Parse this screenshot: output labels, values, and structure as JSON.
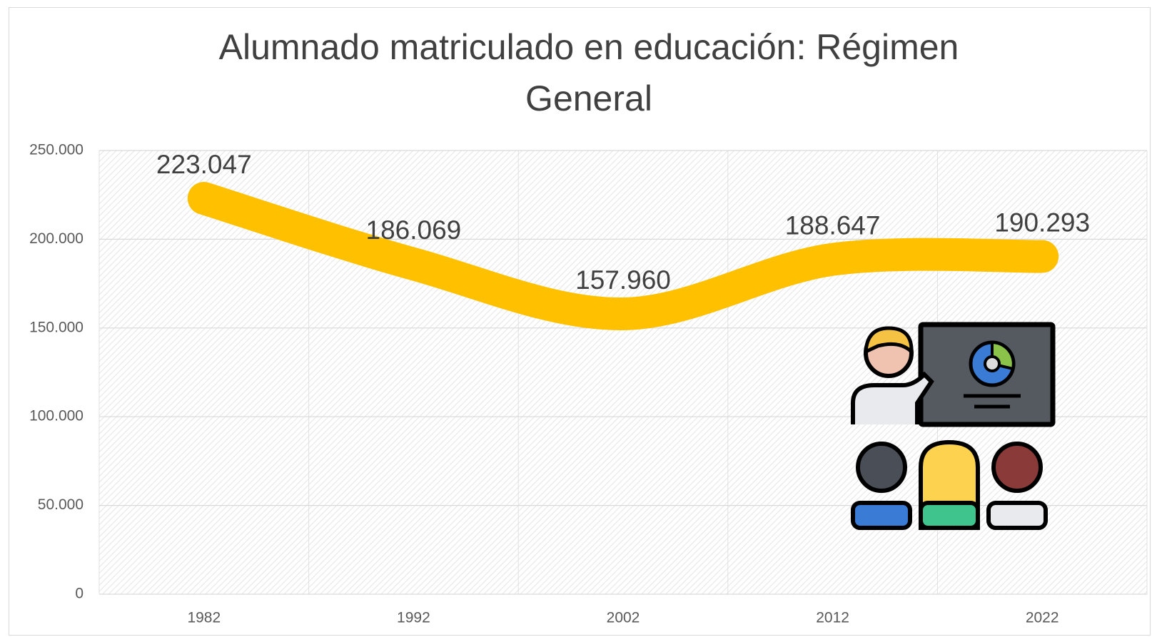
{
  "chart_data": {
    "type": "line",
    "title": "Alumnado matriculado en educación: Régimen General",
    "categories": [
      "1982",
      "1992",
      "2002",
      "2012",
      "2022"
    ],
    "values": [
      223047,
      186069,
      157960,
      188647,
      190293
    ],
    "value_labels": [
      "223.047",
      "186.069",
      "157.960",
      "188.647",
      "190.293"
    ],
    "color": "#ffc000",
    "smooth": true,
    "ylim": [
      0,
      250000
    ],
    "yticks": [
      0,
      {
        "value": 50000,
        "label": "50.000"
      },
      {
        "value": 100000,
        "label": "100.000"
      },
      {
        "value": 150000,
        "label": "150.000"
      },
      {
        "value": 200000,
        "label": "200.000"
      },
      {
        "value": 250000,
        "label": "250.000"
      }
    ],
    "grid": true
  }
}
